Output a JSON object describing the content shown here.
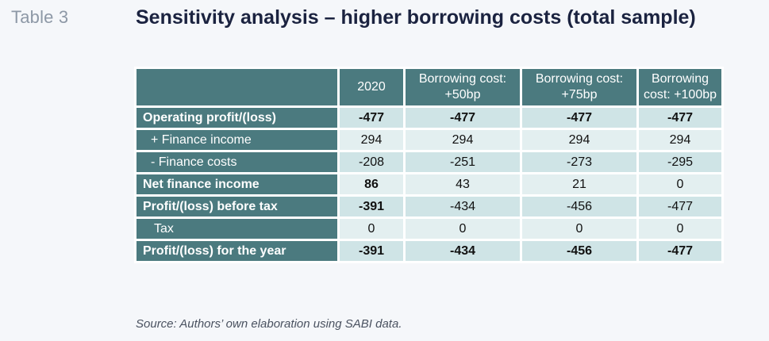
{
  "table_label": "Table 3",
  "title": "Sensitivity analysis – higher borrowing costs (total sample)",
  "columns": [
    "",
    "2020",
    "Borrowing cost: +50bp",
    "Borrowing cost: +75bp",
    "Borrowing cost: +100bp"
  ],
  "rows": [
    {
      "label": "Operating profit/(loss)",
      "values": [
        "-477",
        "-477",
        "-477",
        "-477"
      ]
    },
    {
      "label": "+ Finance income",
      "values": [
        "294",
        "294",
        "294",
        "294"
      ]
    },
    {
      "label": "- Finance costs",
      "values": [
        "-208",
        "-251",
        "-273",
        "-295"
      ]
    },
    {
      "label": "Net finance income",
      "values": [
        "86",
        "43",
        "21",
        "0"
      ]
    },
    {
      "label": "Profit/(loss) before tax",
      "values": [
        "-391",
        "-434",
        "-456",
        "-477"
      ]
    },
    {
      "label": "Tax",
      "values": [
        "0",
        "0",
        "0",
        "0"
      ]
    },
    {
      "label": "Profit/(loss) for the year",
      "values": [
        "-391",
        "-434",
        "-456",
        "-477"
      ]
    }
  ],
  "source": "Source: Authors’ own elaboration using SABI data."
}
